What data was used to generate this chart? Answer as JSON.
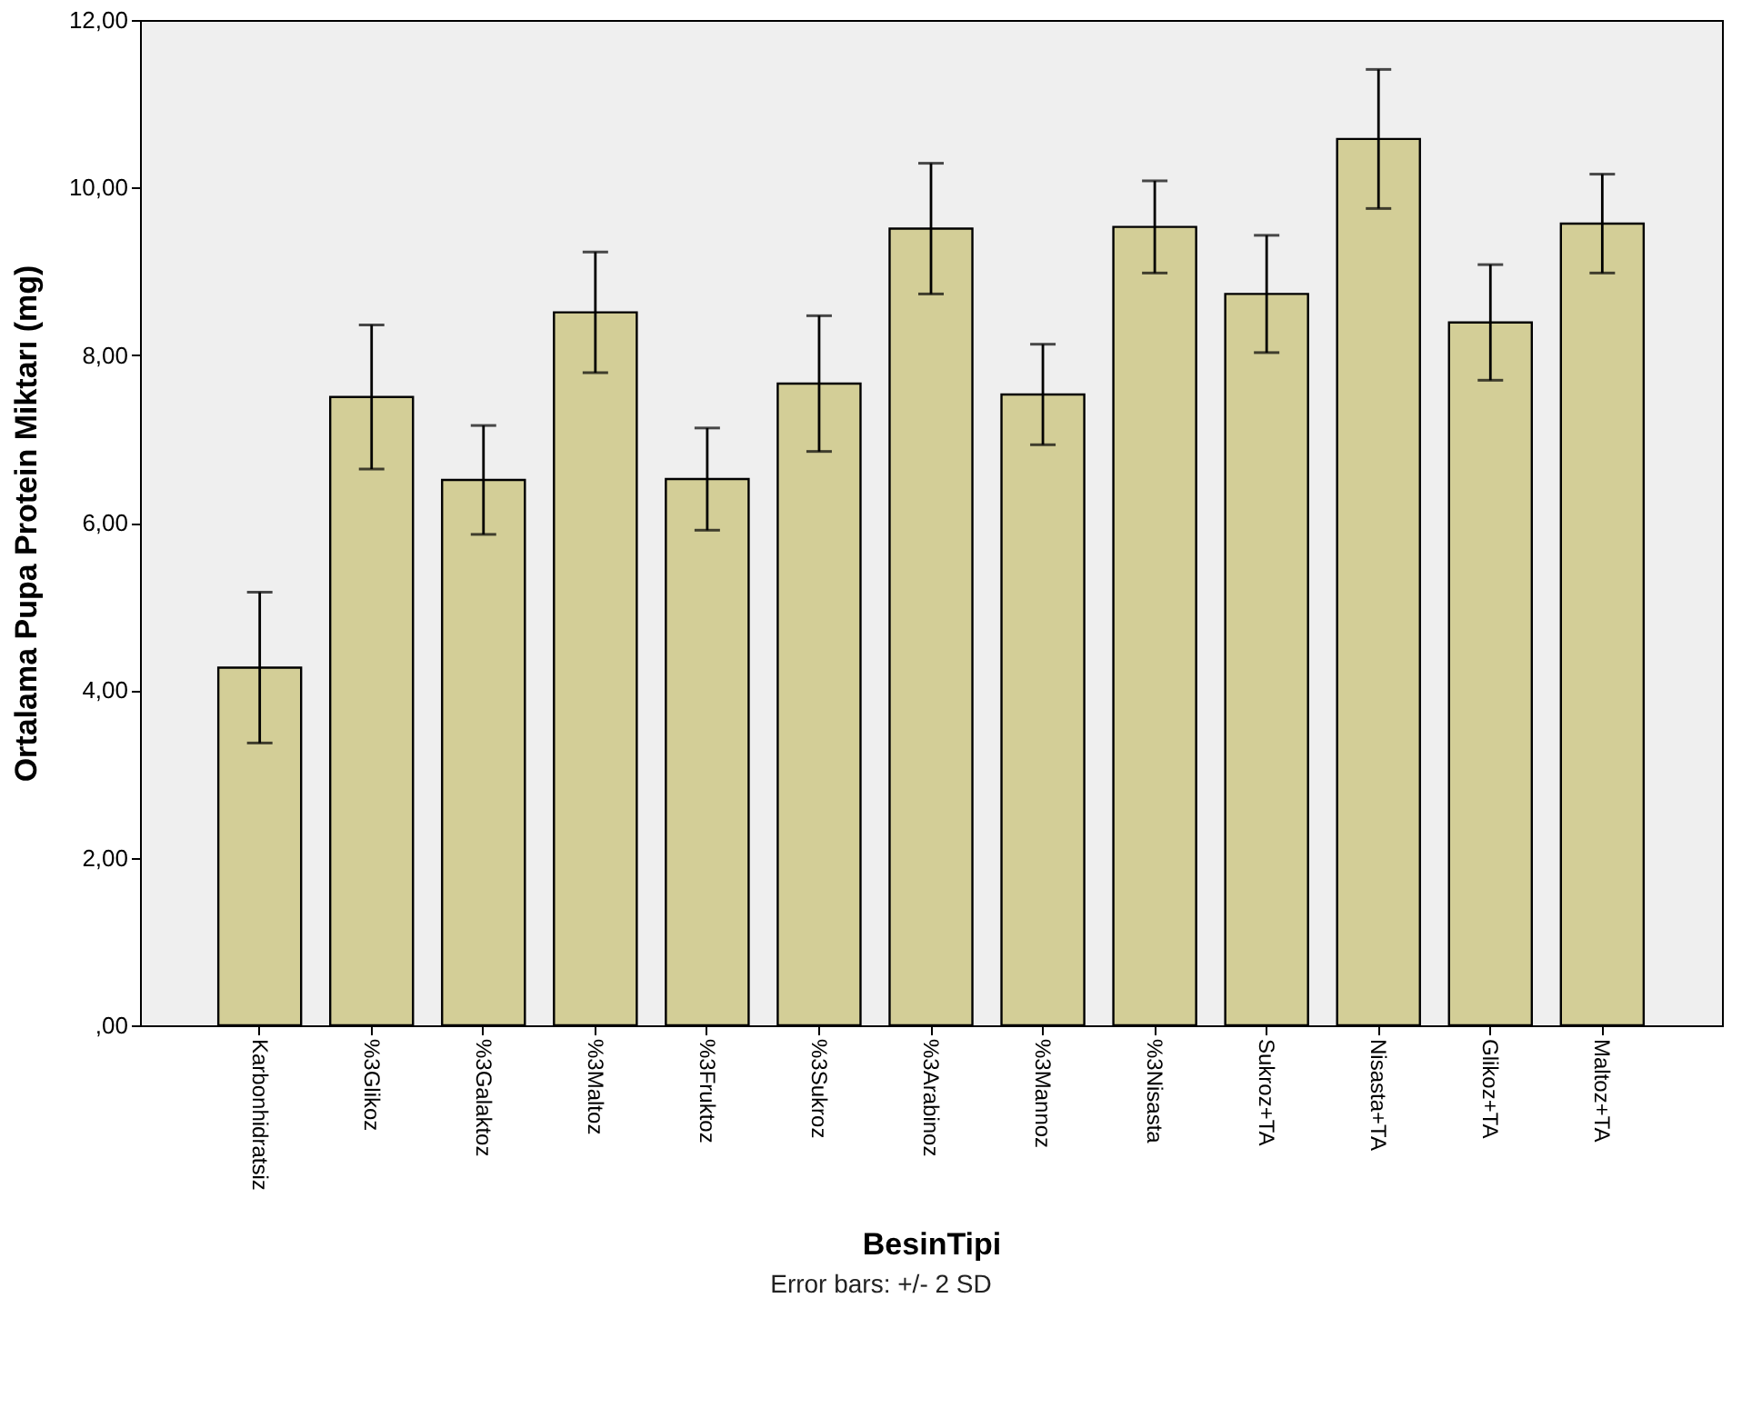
{
  "chart_data": {
    "type": "bar",
    "xlabel": "BesinTipi",
    "ylabel": "Ortalama Pupa Protein Miktarı (mg)",
    "categories": [
      "Karbonhidratsiz",
      "%3Glikoz",
      "%3Galaktoz",
      "%3Maltoz",
      "%3Fruktoz",
      "%3Sukroz",
      "%3Arabinoz",
      "%3Mannoz",
      "%3Nisasta",
      "Sukroz+TA",
      "Nisasta+TA",
      "Glikoz+TA",
      "Maltoz+TA"
    ],
    "values": [
      4.27,
      7.5,
      6.51,
      8.51,
      6.52,
      7.66,
      9.51,
      7.53,
      9.53,
      8.73,
      10.58,
      8.39,
      9.57
    ],
    "errors": [
      0.9,
      0.86,
      0.65,
      0.72,
      0.61,
      0.81,
      0.78,
      0.6,
      0.55,
      0.7,
      0.83,
      0.69,
      0.59
    ],
    "color": "#d3ce97",
    "ylim": [
      0,
      12
    ],
    "yticks": [
      {
        "value": 0,
        "label": ",00"
      },
      {
        "value": 2,
        "label": "2,00"
      },
      {
        "value": 4,
        "label": "4,00"
      },
      {
        "value": 6,
        "label": "6,00"
      },
      {
        "value": 8,
        "label": "8,00"
      },
      {
        "value": 10,
        "label": "10,00"
      },
      {
        "value": 12,
        "label": "12,00"
      }
    ],
    "grid": false,
    "annotations": [
      "Error bars: +/- 2 SD"
    ]
  }
}
